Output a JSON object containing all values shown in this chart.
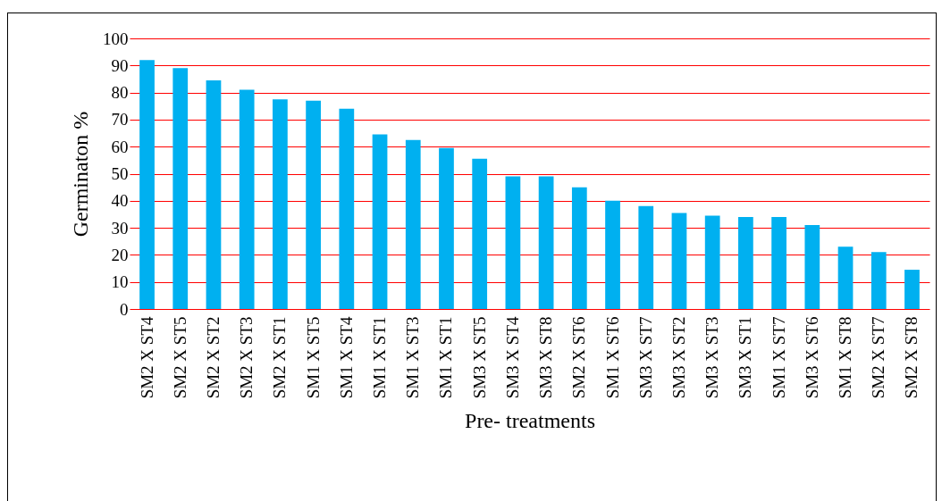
{
  "chart_data": {
    "type": "bar",
    "xlabel": "Pre- treatments",
    "ylabel": "Germinaton %",
    "categories": [
      "SM2 X ST4",
      "SM2 X ST5",
      "SM2 X ST2",
      "SM2 X ST3",
      "SM2 X ST1",
      "SM1 X ST5",
      "SM1 X ST4",
      "SM1 X ST1",
      "SM1 X ST3",
      "SM1 X ST1",
      "SM3 X ST5",
      "SM3 X ST4",
      "SM3 X ST8",
      "SM2 X ST6",
      "SM1 X ST6",
      "SM3 X ST7",
      "SM3 X ST2",
      "SM3 X ST3",
      "SM3 X ST1",
      "SM1 X ST7",
      "SM3 X ST6",
      "SM1 X ST8",
      "SM2 X ST7",
      "SM2 X ST8"
    ],
    "values": [
      92,
      89,
      84.5,
      81,
      77.5,
      77,
      74,
      64.5,
      62.5,
      59.5,
      55.5,
      49,
      49,
      45,
      40,
      38,
      35.5,
      34.5,
      34,
      34,
      31,
      23,
      21,
      14.5
    ],
    "color": "#00b0f0",
    "ylim": [
      0,
      100
    ],
    "yticks": [
      0,
      10,
      20,
      30,
      40,
      50,
      60,
      70,
      80,
      90,
      100
    ],
    "grid": "y"
  }
}
